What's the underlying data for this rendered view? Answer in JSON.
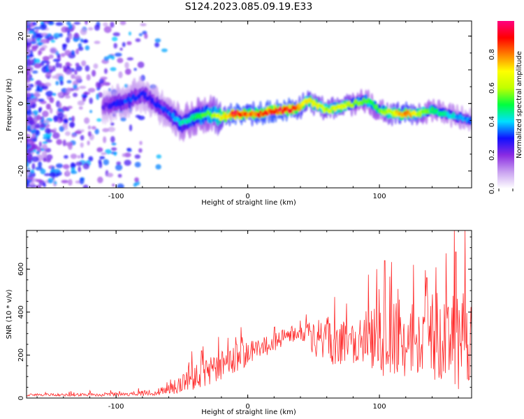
{
  "title": "S124.2023.085.09.19.E33",
  "chart_data": [
    {
      "type": "heatmap",
      "xlabel": "Height of straight line (km)",
      "ylabel": "Frequency (Hz)",
      "xlim": [
        -168,
        170
      ],
      "ylim": [
        -25,
        24.5
      ],
      "xticks": [
        -100,
        0,
        100
      ],
      "yticks": [
        -20,
        -10,
        0,
        10,
        20
      ],
      "colorbar": {
        "label": "Normalized spectral amplitude",
        "range": [
          0,
          1
        ],
        "ticks": [
          0.0,
          0.2,
          0.4,
          0.6,
          0.8
        ],
        "tick_labels": [
          "0.0",
          "0.2",
          "0.4",
          "0.6",
          "0.8"
        ],
        "colors": [
          "#ffffff",
          "#c8a0f0",
          "#8a2be2",
          "#1010ff",
          "#00e0ff",
          "#00ff40",
          "#c0ff00",
          "#ffff00",
          "#ff8000",
          "#ff0000",
          "#ff0080"
        ]
      },
      "ridge": {
        "x": [
          -110,
          -100,
          -90,
          -80,
          -70,
          -60,
          -50,
          -40,
          -30,
          -20,
          -10,
          0,
          10,
          20,
          30,
          40,
          45,
          50,
          60,
          70,
          80,
          90,
          100,
          110,
          120,
          130,
          140,
          150,
          160,
          170
        ],
        "y": [
          -1,
          0,
          1,
          3,
          0,
          -3,
          -6,
          -4,
          -3,
          -4,
          -3,
          -3,
          -3,
          -2,
          -2,
          -1,
          1,
          0,
          -2,
          -1,
          0,
          1,
          -2,
          -3,
          -3,
          -3,
          -2,
          -3,
          -4,
          -5
        ],
        "amplitude": [
          0.25,
          0.3,
          0.35,
          0.3,
          0.3,
          0.35,
          0.45,
          0.5,
          0.55,
          0.7,
          0.95,
          0.85,
          0.9,
          0.92,
          0.95,
          0.8,
          0.75,
          0.7,
          0.65,
          0.7,
          0.6,
          0.55,
          0.55,
          0.7,
          0.85,
          0.65,
          0.5,
          0.45,
          0.4,
          0.35
        ]
      },
      "noise_region": {
        "x_from": -168,
        "x_to": -60,
        "level": 0.3
      }
    },
    {
      "type": "line",
      "xlabel": "Height of straight line (km)",
      "ylabel": "SNR (10 * v/v)",
      "xlim": [
        -168,
        170
      ],
      "ylim": [
        0,
        780
      ],
      "xticks": [
        -100,
        0,
        100
      ],
      "yticks": [
        0,
        200,
        400,
        600
      ],
      "color": "#ff2a2a",
      "envelope": {
        "x": [
          -168,
          -140,
          -110,
          -90,
          -70,
          -60,
          -50,
          -40,
          -30,
          -20,
          -10,
          0,
          10,
          20,
          30,
          40,
          50,
          60,
          70,
          80,
          90,
          100,
          110,
          120,
          130,
          140,
          150,
          160,
          170
        ],
        "mean": [
          15,
          15,
          16,
          20,
          25,
          40,
          70,
          100,
          120,
          150,
          180,
          200,
          230,
          260,
          290,
          310,
          280,
          270,
          260,
          260,
          260,
          280,
          270,
          280,
          270,
          300,
          260,
          300,
          260
        ],
        "spread": [
          6,
          6,
          8,
          10,
          15,
          25,
          50,
          60,
          70,
          70,
          75,
          60,
          50,
          45,
          40,
          35,
          100,
          110,
          110,
          100,
          120,
          180,
          190,
          180,
          170,
          220,
          180,
          260,
          200
        ],
        "peaks": [
          [
            -168,
            10
          ],
          [
            -60,
            60
          ],
          [
            -35,
            220
          ],
          [
            -15,
            280
          ],
          [
            -5,
            330
          ],
          [
            20,
            330
          ],
          [
            40,
            360
          ],
          [
            75,
            440
          ],
          [
            98,
            600
          ],
          [
            104,
            640
          ],
          [
            126,
            620
          ],
          [
            136,
            560
          ],
          [
            158,
            680
          ],
          [
            165,
            780
          ]
        ]
      }
    }
  ]
}
